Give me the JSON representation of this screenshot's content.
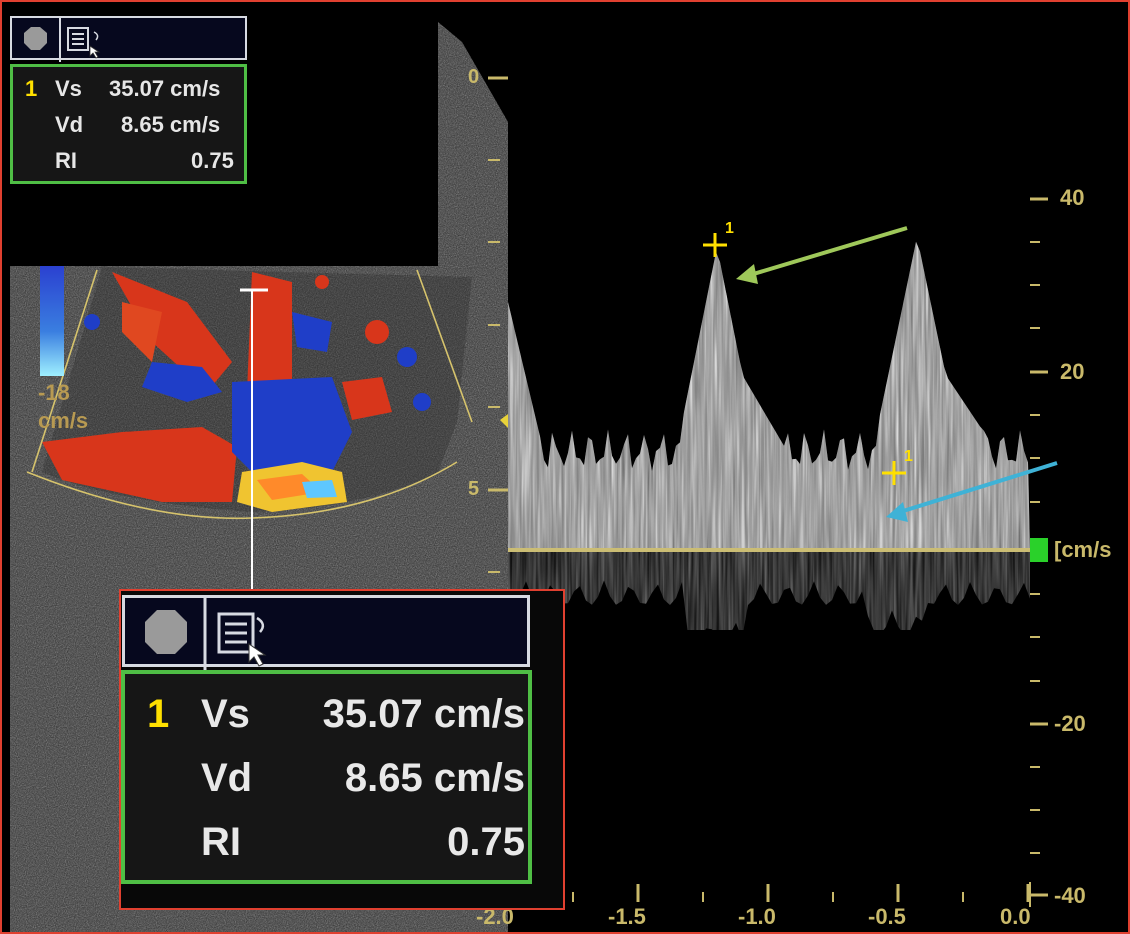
{
  "measurements": {
    "index": "1",
    "rows": [
      {
        "label": "Vs",
        "value": "35.07 cm/s"
      },
      {
        "label": "Vd",
        "value": "8.65 cm/s"
      },
      {
        "label": "RI",
        "value": "0.75"
      }
    ]
  },
  "color_scale": {
    "value": "-18",
    "unit": "cm/s"
  },
  "depth_labels": [
    "0",
    "5"
  ],
  "velocity_axis": {
    "ticks": [
      "40",
      "20",
      "-20",
      "-40"
    ],
    "unit": "[cm/s"
  },
  "time_axis": {
    "ticks": [
      "-2.0",
      "-1.5",
      "-1.0",
      "-0.5",
      "0.0"
    ]
  },
  "markers": [
    {
      "label": "1"
    },
    {
      "label": "1"
    }
  ],
  "toolbar_icons": [
    "stop-circle-icon",
    "grid-table-icon",
    "cursor-pointer-icon"
  ],
  "colors": {
    "frame_border": "#e04030",
    "panel_border": "#4fbe45",
    "marker": "#ffe000",
    "systolic_arrow": "#9fc85a",
    "diastolic_arrow": "#3fb2d6",
    "doppler_red": "#d8361b",
    "doppler_blue": "#1f3ec8",
    "axis_text": "#c9b96a"
  }
}
